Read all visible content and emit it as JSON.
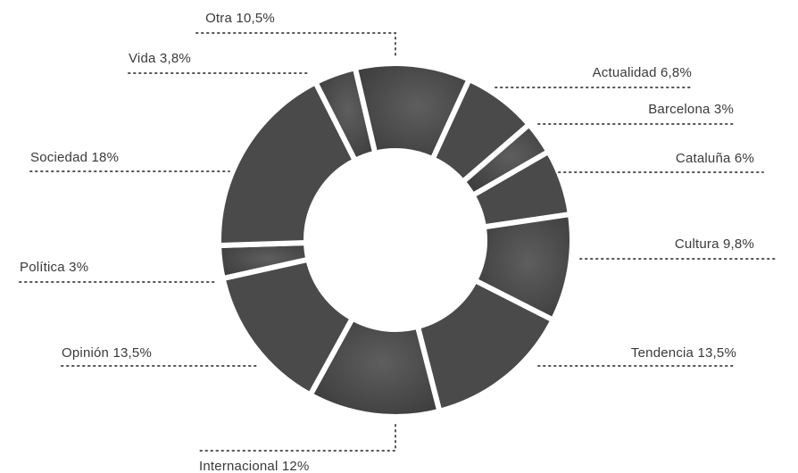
{
  "chart_data": {
    "type": "pie",
    "donut": true,
    "slices": [
      {
        "label": "Otra 10,5%",
        "value": 10.5
      },
      {
        "label": "Actualidad 6,8%",
        "value": 6.8
      },
      {
        "label": "Barcelona 3%",
        "value": 3
      },
      {
        "label": "Cataluña 6%",
        "value": 6
      },
      {
        "label": "Cultura 9,8%",
        "value": 9.8
      },
      {
        "label": "Tendencia 13,5%",
        "value": 13.5
      },
      {
        "label": "Internacional 12%",
        "value": 12
      },
      {
        "label": "Opinión 13,5%",
        "value": 13.5
      },
      {
        "label": "Política 3%",
        "value": 3
      },
      {
        "label": "Sociedad 18%",
        "value": 18
      },
      {
        "label": "Vida 3,8%",
        "value": 3.8
      }
    ],
    "slice_color": "#4a4a4a",
    "separator_color": "#ffffff",
    "leader_color": "#555555"
  }
}
